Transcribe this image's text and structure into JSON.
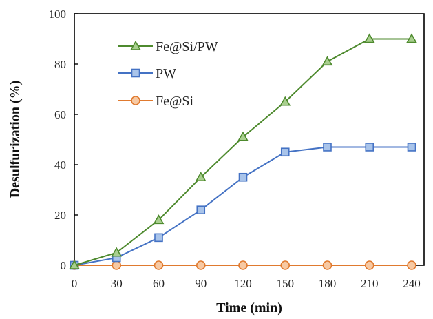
{
  "chart_data": {
    "type": "line",
    "xlabel": "Time (min)",
    "ylabel": "Desulfurization (%)",
    "x": [
      0,
      30,
      60,
      90,
      120,
      150,
      180,
      210,
      240
    ],
    "xlim": [
      0,
      240
    ],
    "ylim": [
      0,
      100
    ],
    "xticks": [
      "0",
      "30",
      "60",
      "90",
      "120",
      "150",
      "180",
      "210",
      "240"
    ],
    "yticks": [
      "0",
      "20",
      "40",
      "60",
      "80",
      "100"
    ],
    "grid": false,
    "legend_position": "top-left",
    "series": [
      {
        "name": "Fe@Si/PW",
        "marker": "triangle",
        "color": "#4e8a2e",
        "fill": "#a9cf8f",
        "values": [
          0,
          5,
          18,
          35,
          51,
          65,
          81,
          90,
          90
        ]
      },
      {
        "name": "PW",
        "marker": "square",
        "color": "#4472c4",
        "fill": "#a9c4ea",
        "values": [
          0,
          3,
          11,
          22,
          35,
          45,
          47,
          47,
          47
        ]
      },
      {
        "name": "Fe@Si",
        "marker": "circle",
        "color": "#e07a2f",
        "fill": "#f7c9a3",
        "values": [
          0,
          0,
          0,
          0,
          0,
          0,
          0,
          0,
          0
        ]
      }
    ]
  }
}
